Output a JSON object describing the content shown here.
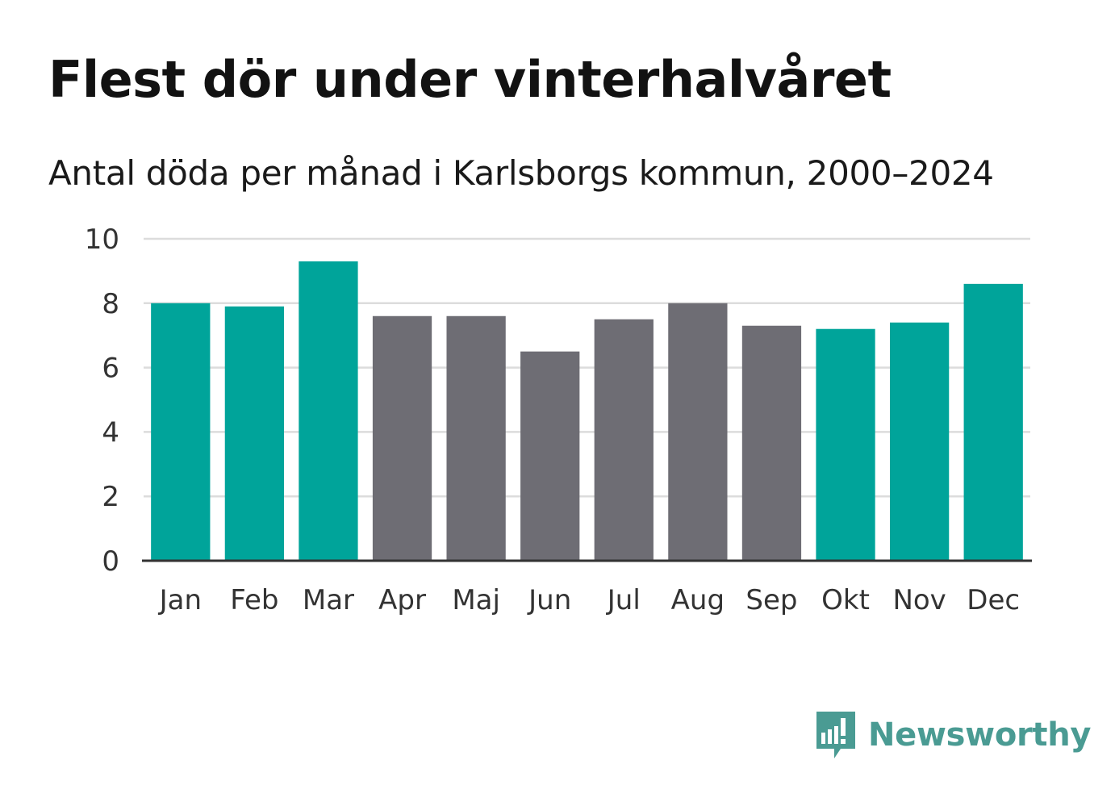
{
  "header": {
    "title": "Flest dör under vinterhalvåret",
    "subtitle": "Antal döda per månad i Karlsborgs kommun, 2000–2024"
  },
  "brand": {
    "name": "Newsworthy",
    "icon": "newsworthy-logo-icon",
    "color": "#4a9b93"
  },
  "colors": {
    "winter": "#00a49a",
    "summer": "#6e6d74",
    "grid": "#dcdcdc",
    "axis": "#333333"
  },
  "chart_data": {
    "type": "bar",
    "title": "Antal döda per månad i Karlsborgs kommun, 2000–2024",
    "xlabel": "",
    "ylabel": "",
    "ylim": [
      0,
      10
    ],
    "yticks": [
      0,
      2,
      4,
      6,
      8,
      10
    ],
    "categories": [
      "Jan",
      "Feb",
      "Mar",
      "Apr",
      "Maj",
      "Jun",
      "Jul",
      "Aug",
      "Sep",
      "Okt",
      "Nov",
      "Dec"
    ],
    "values": [
      8.0,
      7.9,
      9.3,
      7.6,
      7.6,
      6.5,
      7.5,
      8.0,
      7.3,
      7.2,
      7.4,
      8.6
    ],
    "highlight": [
      true,
      true,
      true,
      false,
      false,
      false,
      false,
      false,
      false,
      true,
      true,
      true
    ],
    "grid": true,
    "legend": "none"
  }
}
